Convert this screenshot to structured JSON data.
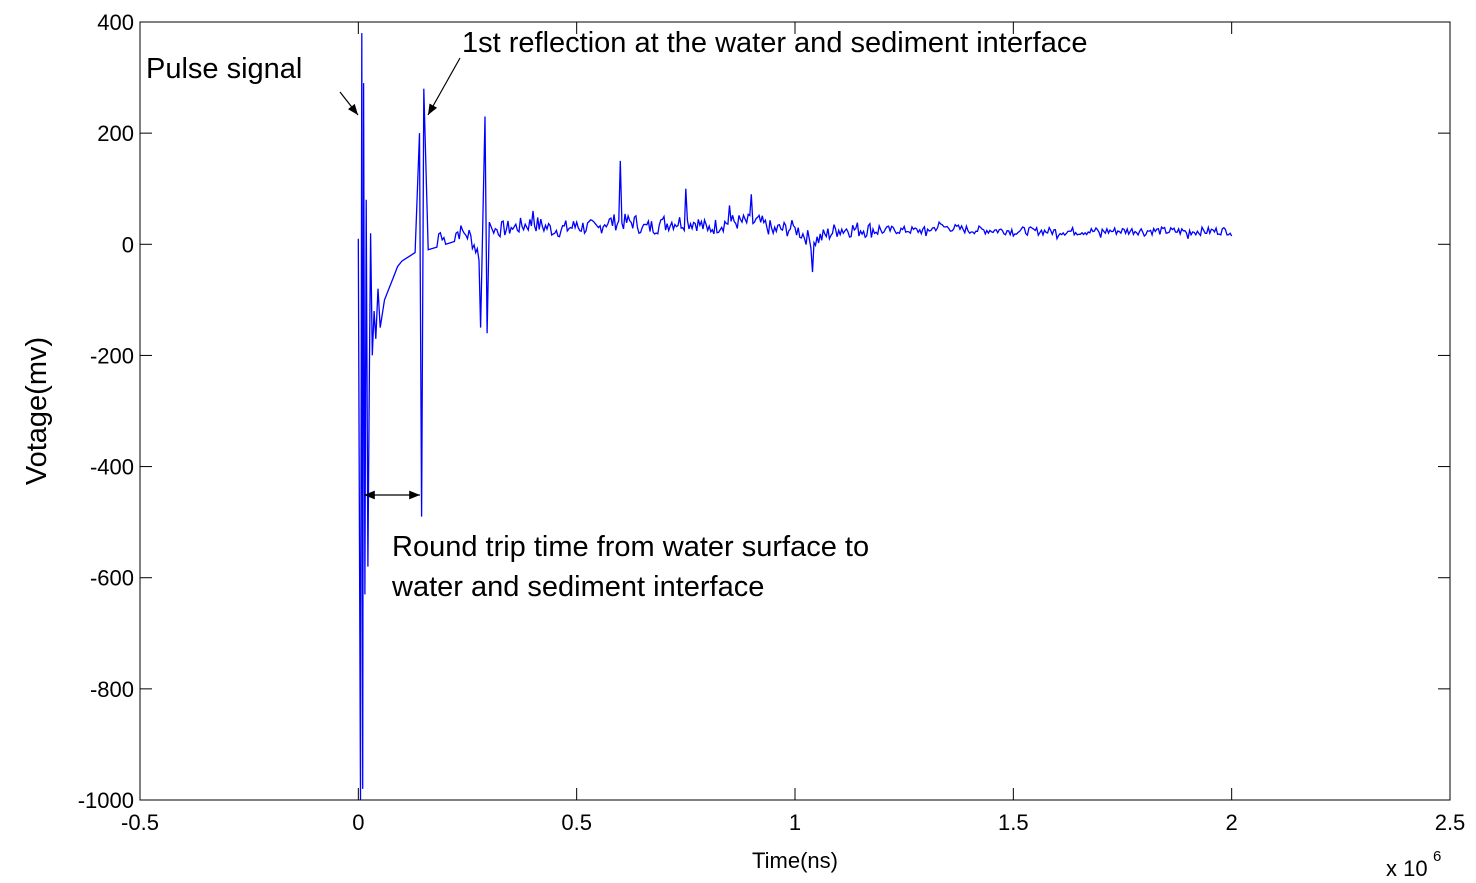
{
  "chart_data": {
    "type": "line",
    "title": "",
    "xlabel": "Time(ns)",
    "ylabel": "Votage(mv)",
    "x_multiplier": "x 10",
    "x_multiplier_exponent": "6",
    "xlim": [
      -0.5,
      2.5
    ],
    "ylim": [
      -1000,
      400
    ],
    "x_ticks": [
      -0.5,
      0,
      0.5,
      1,
      1.5,
      2,
      2.5
    ],
    "x_tick_labels": [
      "-0.5",
      "0",
      "0.5",
      "1",
      "1.5",
      "2",
      "2.5"
    ],
    "y_ticks": [
      -1000,
      -800,
      -600,
      -400,
      -200,
      0,
      200,
      400
    ],
    "y_tick_labels": [
      "-1000",
      "-800",
      "-600",
      "-400",
      "-200",
      "0",
      "200",
      "400"
    ],
    "grid": false,
    "line_color": "#0000ff",
    "series": [
      {
        "x_unit_scale": 1000000,
        "x": [
          0.0,
          0.005,
          0.008,
          0.01,
          0.012,
          0.015,
          0.018,
          0.022,
          0.025,
          0.028,
          0.032,
          0.036,
          0.04,
          0.045,
          0.05,
          0.06,
          0.07,
          0.08,
          0.09,
          0.1,
          0.11,
          0.12,
          0.13,
          0.14,
          0.145,
          0.15,
          0.16,
          0.18,
          0.2,
          0.22,
          0.25,
          0.28,
          0.29,
          0.295,
          0.3,
          0.31,
          0.35,
          0.4,
          0.45,
          0.5,
          0.55,
          0.6,
          0.65,
          0.7,
          0.75,
          0.8,
          0.85,
          0.9,
          0.95,
          1.0,
          1.04,
          1.1,
          1.2,
          1.3,
          1.33,
          1.4,
          1.5,
          1.6,
          1.7,
          1.8,
          1.9,
          2.0
        ],
        "y": [
          10,
          -1000,
          380,
          -980,
          290,
          -630,
          80,
          -580,
          -250,
          20,
          -200,
          -120,
          -170,
          -80,
          -150,
          -100,
          -80,
          -60,
          -40,
          -30,
          -25,
          -20,
          -15,
          200,
          -490,
          280,
          -10,
          -5,
          0,
          5,
          10,
          -150,
          230,
          -160,
          40,
          20,
          30,
          60,
          20,
          40,
          30,
          150,
          30,
          50,
          100,
          25,
          70,
          90,
          20,
          30,
          -50,
          25,
          20,
          15,
          40,
          20,
          15,
          10,
          12,
          15,
          10,
          15
        ]
      }
    ],
    "annotations": [
      {
        "text": "Pulse signal"
      },
      {
        "text": "1st reflection at the water and sediment interface"
      },
      {
        "lines": [
          "Round trip time from water surface to",
          "water and sediment interface"
        ]
      }
    ]
  }
}
